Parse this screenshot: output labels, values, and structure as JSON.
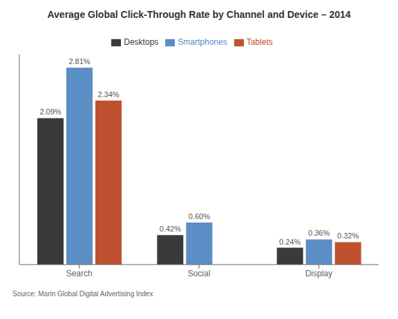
{
  "chart_data": {
    "type": "bar",
    "title": "Average Global Click-Through Rate by Channel and Device – 2014",
    "categories": [
      "Search",
      "Social",
      "Display"
    ],
    "series": [
      {
        "name": "Desktops",
        "color": "#3a3a3a",
        "values": [
          2.09,
          0.42,
          0.24
        ],
        "value_labels": [
          "2.09%",
          "0.42%",
          "0.24%"
        ]
      },
      {
        "name": "Smartphones",
        "color": "#5b8ec4",
        "values": [
          2.81,
          0.6,
          0.36
        ],
        "value_labels": [
          "2.81%",
          "0.60%",
          "0.36%"
        ]
      },
      {
        "name": "Tablets",
        "color": "#bf5030",
        "values": [
          2.34,
          null,
          0.32
        ],
        "value_labels": [
          "2.34%",
          null,
          "0.32%"
        ]
      }
    ],
    "ylim": [
      0,
      3.0
    ],
    "tick_labels": "x",
    "data_labels": true,
    "legend": "top",
    "annotations": [
      "Source: Marin Global Digital Advertising Index"
    ]
  }
}
